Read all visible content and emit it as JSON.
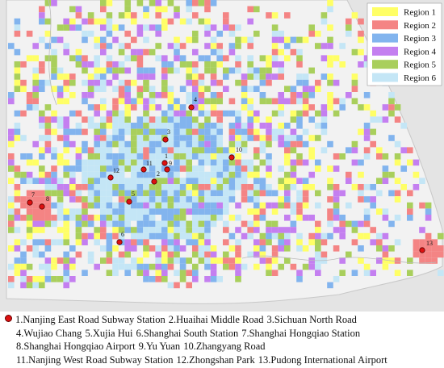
{
  "legend": [
    {
      "label": "Region 1",
      "color": "#ffff66"
    },
    {
      "label": "Region 2",
      "color": "#f48484"
    },
    {
      "label": "Region 3",
      "color": "#82b4ee"
    },
    {
      "label": "Region 4",
      "color": "#c47ff0"
    },
    {
      "label": "Region 5",
      "color": "#a9cf5c"
    },
    {
      "label": "Region 6",
      "color": "#c4e6f6"
    }
  ],
  "stations": [
    {
      "marker": "1",
      "caption": "1.Nanjing East Road Subway Station"
    },
    {
      "marker": "2",
      "caption": "2.Huaihai Middle Road"
    },
    {
      "marker": "3",
      "caption": "3.Sichuan North Road"
    },
    {
      "marker": "4",
      "caption": "4.Wujiao Chang"
    },
    {
      "marker": "5",
      "caption": "5.Xujia Hui"
    },
    {
      "marker": "6",
      "caption": "6.Shanghai South Station"
    },
    {
      "marker": "7",
      "caption": "7.Shanghai Hongqiao Station"
    },
    {
      "marker": "8",
      "caption": "8.Shanghai Hongqiao Airport"
    },
    {
      "marker": "9",
      "caption": "9.Yu Yuan"
    },
    {
      "marker": "10",
      "caption": "10.Zhangyang Road"
    },
    {
      "marker": "11",
      "caption": "11.Nanjing West Road Subway Station"
    },
    {
      "marker": "12",
      "caption": "12.Zhongshan Park"
    },
    {
      "marker": "13",
      "caption": "13.Pudong International Airport"
    }
  ]
}
